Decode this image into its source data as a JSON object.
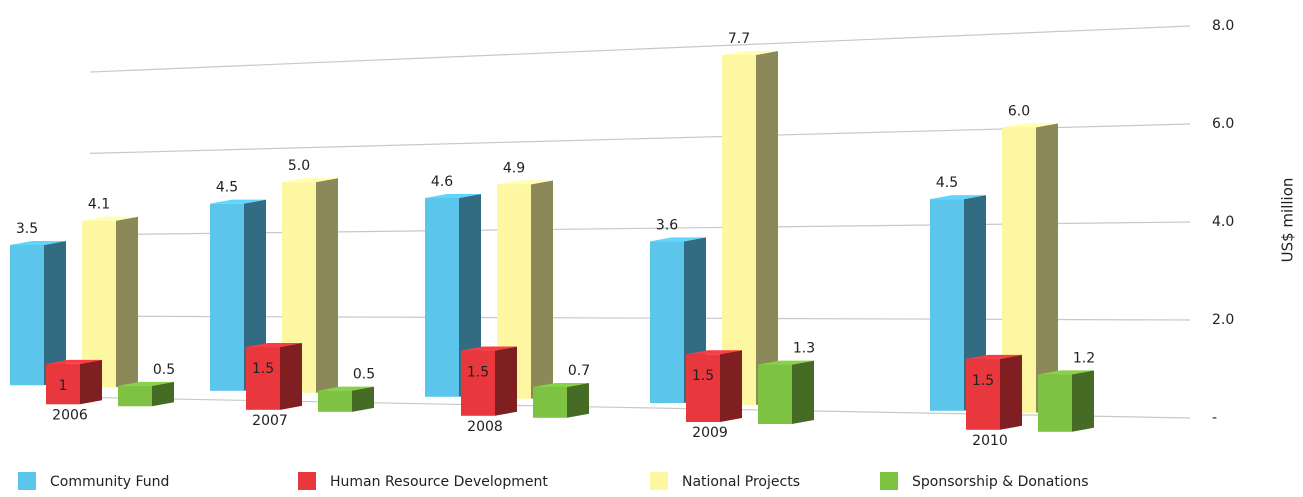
{
  "chart_data": {
    "type": "bar",
    "categories": [
      "2006",
      "2007",
      "2008",
      "2009",
      "2010"
    ],
    "series": [
      {
        "name": "Community Fund",
        "color": "#5bc5ec",
        "values": [
          3.5,
          4.5,
          4.6,
          3.6,
          4.5
        ]
      },
      {
        "name": "Human Resource Development",
        "color": "#e8383d",
        "values": [
          1,
          1.5,
          1.5,
          1.5,
          1.5
        ]
      },
      {
        "name": "National Projects",
        "color": "#fdf7a1",
        "values": [
          4.1,
          5.0,
          4.9,
          7.7,
          6.0
        ],
        "value_labels": [
          "4.1",
          "5.0",
          "4.9",
          "7.7",
          "6.0"
        ]
      },
      {
        "name": "Sponsorship & Donations",
        "color": "#7dc242",
        "values": [
          0.5,
          0.5,
          0.7,
          1.3,
          1.2
        ]
      }
    ],
    "ylabel": "US$ million",
    "ylim": [
      0,
      8
    ],
    "yticks": [
      {
        "value": 0,
        "label": "-"
      },
      {
        "value": 2,
        "label": "2.0"
      },
      {
        "value": 4,
        "label": "4.0"
      },
      {
        "value": 6,
        "label": "6.0"
      },
      {
        "value": 8,
        "label": "8.0"
      }
    ],
    "grid": true,
    "legend": "bottom"
  }
}
